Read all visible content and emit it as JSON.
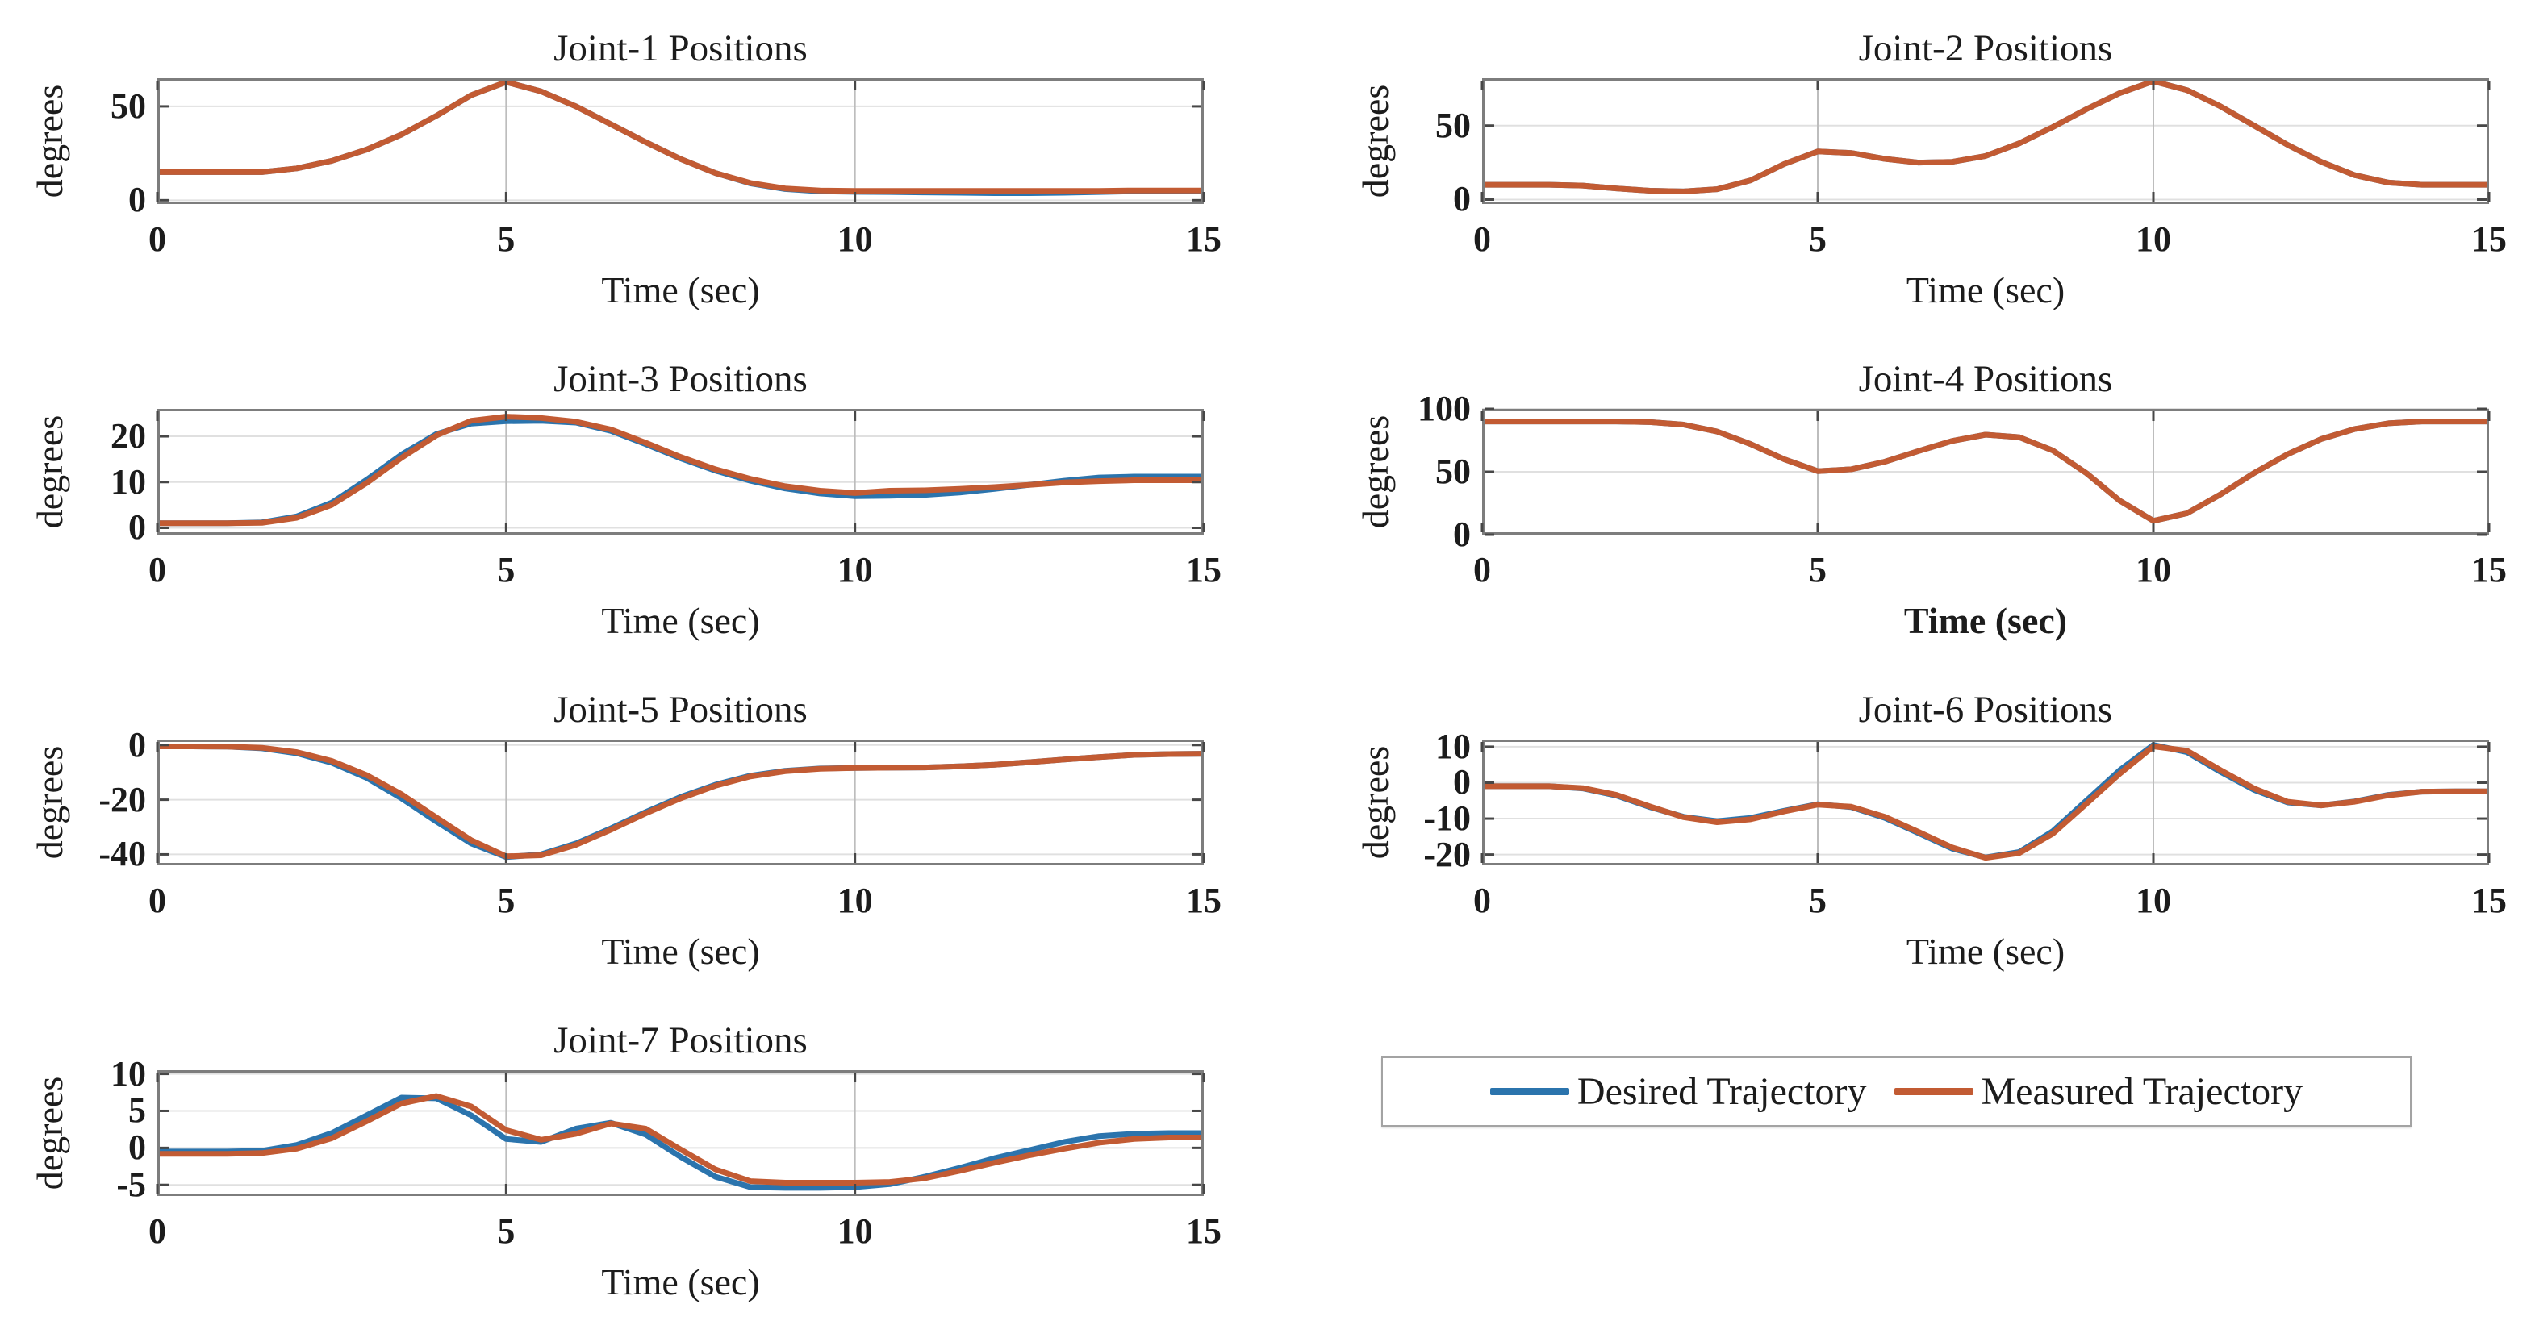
{
  "figure": {
    "background": "#ffffff",
    "colors": {
      "desired": "#2b74ad",
      "measured": "#c25b33",
      "grid_h": "#e0e0e0",
      "grid_v": "#bdbdbd",
      "axis_box": "#7d7d7d",
      "tick": "#474747"
    },
    "x_values": [
      0,
      0.5,
      1,
      1.5,
      2,
      2.5,
      3,
      3.5,
      4,
      4.5,
      5,
      5.5,
      6,
      6.5,
      7,
      7.5,
      8,
      8.5,
      9,
      9.5,
      10,
      10.5,
      11,
      11.5,
      12,
      12.5,
      13,
      13.5,
      14,
      14.5,
      15
    ],
    "legend": {
      "items": [
        {
          "label": "Desired Trajectory",
          "color": "#2b74ad"
        },
        {
          "label": "Measured Trajectory",
          "color": "#c25b33"
        }
      ]
    },
    "chart_data": [
      {
        "type": "line",
        "title": "Joint-1 Positions",
        "ylabel": "degrees",
        "xlabel": "Time (sec)",
        "xlabel_bold": false,
        "xlim": [
          0,
          15
        ],
        "ylim": [
          -2,
          65
        ],
        "xticks": [
          0,
          5,
          10,
          15
        ],
        "yticks": [
          0,
          50
        ],
        "x_gridlines": [
          5,
          10
        ],
        "series": [
          {
            "name": "Desired Trajectory",
            "values": [
              15,
              15,
              15,
              15,
              17,
              21,
              27,
              35,
              45,
              56,
              63,
              58,
              50,
              40.5,
              31,
              22,
              14.5,
              9,
              6,
              4.8,
              4.5,
              4.4,
              4.2,
              4.0,
              3.8,
              3.8,
              4.0,
              4.4,
              4.8,
              5.0,
              5.0
            ]
          },
          {
            "name": "Measured Trajectory",
            "values": [
              15,
              15,
              15,
              15,
              17,
              21,
              27,
              35,
              45,
              56,
              63,
              58,
              50,
              40.5,
              31,
              22,
              14.5,
              9.2,
              6.3,
              5.2,
              5.0,
              5.0,
              5.0,
              5.0,
              5.0,
              5.0,
              5.0,
              5.0,
              5.2,
              5.2,
              5.2
            ]
          }
        ]
      },
      {
        "type": "line",
        "title": "Joint-2 Positions",
        "ylabel": "degrees",
        "xlabel": "Time (sec)",
        "xlabel_bold": false,
        "xlim": [
          0,
          15
        ],
        "ylim": [
          -3,
          82
        ],
        "xticks": [
          0,
          5,
          10,
          15
        ],
        "yticks": [
          0,
          50
        ],
        "x_gridlines": [
          5,
          10
        ],
        "series": [
          {
            "name": "Desired Trajectory",
            "values": [
              10,
              10,
              10,
              9.5,
              7.5,
              6,
              5.5,
              7,
              13,
              24,
              32.5,
              31.5,
              27.5,
              25,
              25.5,
              29.5,
              38,
              49,
              61,
              72,
              80,
              74,
              63,
              50,
              37,
              25.5,
              16.5,
              11.5,
              10,
              10,
              10
            ]
          },
          {
            "name": "Measured Trajectory",
            "values": [
              10,
              10,
              10,
              9.5,
              7.5,
              6,
              5.5,
              7,
              13,
              24,
              32.5,
              31.5,
              27.5,
              25,
              25.5,
              29.5,
              38,
              49,
              61,
              72,
              80,
              74,
              63,
              50,
              37,
              25.5,
              16.5,
              11.5,
              10,
              10,
              10
            ]
          }
        ]
      },
      {
        "type": "line",
        "title": "Joint-3 Positions",
        "ylabel": "degrees",
        "xlabel": "Time (sec)",
        "xlabel_bold": false,
        "xlim": [
          0,
          15
        ],
        "ylim": [
          -1.5,
          26
        ],
        "xticks": [
          0,
          5,
          10,
          15
        ],
        "yticks": [
          0,
          10,
          20
        ],
        "x_gridlines": [
          5,
          10
        ],
        "series": [
          {
            "name": "Desired Trajectory",
            "values": [
              1,
              1,
              1,
              1.2,
              2.5,
              5.5,
              10.5,
              16,
              20.5,
              22.8,
              23.3,
              23.4,
              23.0,
              21.2,
              18.3,
              15.2,
              12.5,
              10.3,
              8.6,
              7.5,
              6.9,
              7.0,
              7.2,
              7.7,
              8.5,
              9.4,
              10.3,
              11.0,
              11.2,
              11.2,
              11.2
            ]
          },
          {
            "name": "Measured Trajectory",
            "values": [
              1,
              1,
              1,
              1.1,
              2.2,
              5.0,
              9.8,
              15.3,
              20.2,
              23.4,
              24.3,
              24.0,
              23.2,
              21.5,
              18.6,
              15.5,
              12.8,
              10.7,
              9.1,
              8.1,
              7.6,
              8.1,
              8.2,
              8.5,
              8.9,
              9.4,
              9.9,
              10.2,
              10.4,
              10.4,
              10.4
            ]
          }
        ]
      },
      {
        "type": "line",
        "title": "Joint-4 Positions",
        "ylabel": "degrees",
        "xlabel": "Time (sec)",
        "xlabel_bold": true,
        "xlim": [
          0,
          15
        ],
        "ylim": [
          0,
          100
        ],
        "xticks": [
          0,
          5,
          10,
          15
        ],
        "yticks": [
          0,
          50,
          100
        ],
        "x_gridlines": [
          5,
          10
        ],
        "series": [
          {
            "name": "Desired Trajectory",
            "values": [
              90,
              90,
              90,
              90,
              90,
              89.5,
              87.5,
              82,
              72,
              60,
              50.5,
              52,
              58,
              66.5,
              74.5,
              79.5,
              77.5,
              67,
              49,
              27,
              11,
              17,
              32,
              49,
              64,
              76,
              84,
              88.5,
              90,
              90,
              90
            ]
          },
          {
            "name": "Measured Trajectory",
            "values": [
              90,
              90,
              90,
              90,
              90,
              89.5,
              87.5,
              82,
              72,
              60,
              50.5,
              52,
              58,
              66.5,
              74.5,
              79.5,
              77.5,
              67,
              49,
              27,
              11,
              17,
              32,
              49,
              64,
              76,
              84,
              88.5,
              90,
              90,
              90
            ]
          }
        ]
      },
      {
        "type": "line",
        "title": "Joint-5 Positions",
        "ylabel": "degrees",
        "xlabel": "Time (sec)",
        "xlabel_bold": false,
        "xlim": [
          0,
          15
        ],
        "ylim": [
          -44,
          2
        ],
        "xticks": [
          0,
          5,
          10,
          15
        ],
        "yticks": [
          0,
          -20,
          -40
        ],
        "x_gridlines": [
          5,
          10
        ],
        "series": [
          {
            "name": "Desired Trajectory",
            "values": [
              -0.5,
              -0.5,
              -0.6,
              -1.2,
              -3,
              -6.5,
              -12,
              -19.5,
              -28,
              -36,
              -41,
              -40,
              -36,
              -30.5,
              -24.5,
              -19,
              -14.5,
              -11.2,
              -9.4,
              -8.6,
              -8.4,
              -8.3,
              -8.2,
              -7.8,
              -7.2,
              -6.3,
              -5.3,
              -4.4,
              -3.6,
              -3.3,
              -3.2
            ]
          },
          {
            "name": "Measured Trajectory",
            "values": [
              -0.5,
              -0.5,
              -0.6,
              -1.0,
              -2.6,
              -5.8,
              -11,
              -18,
              -26.5,
              -34.8,
              -40.7,
              -40.3,
              -36.5,
              -31,
              -25,
              -19.5,
              -14.9,
              -11.5,
              -9.6,
              -8.7,
              -8.4,
              -8.3,
              -8.2,
              -7.8,
              -7.2,
              -6.3,
              -5.3,
              -4.4,
              -3.6,
              -3.3,
              -3.2
            ]
          }
        ]
      },
      {
        "type": "line",
        "title": "Joint-6 Positions",
        "ylabel": "degrees",
        "xlabel": "Time (sec)",
        "xlabel_bold": false,
        "xlim": [
          0,
          15
        ],
        "ylim": [
          -23,
          12
        ],
        "xticks": [
          0,
          5,
          10,
          15
        ],
        "yticks": [
          10,
          0,
          -10,
          -20
        ],
        "x_gridlines": [
          5,
          10
        ],
        "series": [
          {
            "name": "Desired Trajectory",
            "values": [
              -1,
              -1,
              -1,
              -1.6,
              -3.6,
              -6.8,
              -9.5,
              -10.7,
              -9.8,
              -7.8,
              -6.0,
              -6.8,
              -9.8,
              -14,
              -18.3,
              -20.8,
              -19.3,
              -13.5,
              -5,
              3.5,
              10.5,
              8.5,
              3,
              -2,
              -5.5,
              -6.3,
              -5.2,
              -3.4,
              -2.5,
              -2.4,
              -2.4
            ]
          },
          {
            "name": "Measured Trajectory",
            "values": [
              -1,
              -1,
              -1,
              -1.5,
              -3.4,
              -6.6,
              -9.6,
              -11.0,
              -10.2,
              -8.0,
              -6.1,
              -6.7,
              -9.5,
              -13.7,
              -18.0,
              -20.9,
              -19.6,
              -14.2,
              -5.9,
              2.5,
              10.1,
              8.9,
              3.5,
              -1.6,
              -5.3,
              -6.3,
              -5.3,
              -3.5,
              -2.5,
              -2.4,
              -2.4
            ]
          }
        ]
      },
      {
        "type": "line",
        "title": "Joint-7 Positions",
        "ylabel": "degrees",
        "xlabel": "Time (sec)",
        "xlabel_bold": false,
        "xlim": [
          0,
          15
        ],
        "ylim": [
          -6.5,
          10.5
        ],
        "xticks": [
          0,
          5,
          10,
          15
        ],
        "yticks": [
          10,
          5,
          0,
          -5
        ],
        "x_gridlines": [
          5,
          10
        ],
        "series": [
          {
            "name": "Desired Trajectory",
            "values": [
              -0.5,
              -0.5,
              -0.5,
              -0.4,
              0.4,
              2.0,
              4.4,
              6.8,
              6.7,
              4.4,
              1.2,
              0.8,
              2.6,
              3.4,
              1.8,
              -1.2,
              -3.9,
              -5.3,
              -5.4,
              -5.4,
              -5.3,
              -4.9,
              -3.9,
              -2.7,
              -1.4,
              -0.3,
              0.8,
              1.6,
              1.9,
              2.0,
              2.0
            ]
          },
          {
            "name": "Measured Trajectory",
            "values": [
              -0.8,
              -0.8,
              -0.8,
              -0.7,
              -0.1,
              1.3,
              3.6,
              6.0,
              7.0,
              5.6,
              2.4,
              1.1,
              1.9,
              3.3,
              2.6,
              -0.2,
              -2.9,
              -4.5,
              -4.7,
              -4.7,
              -4.7,
              -4.6,
              -4.1,
              -3.1,
              -2.0,
              -1.0,
              -0.1,
              0.7,
              1.2,
              1.4,
              1.4
            ]
          }
        ]
      }
    ]
  }
}
